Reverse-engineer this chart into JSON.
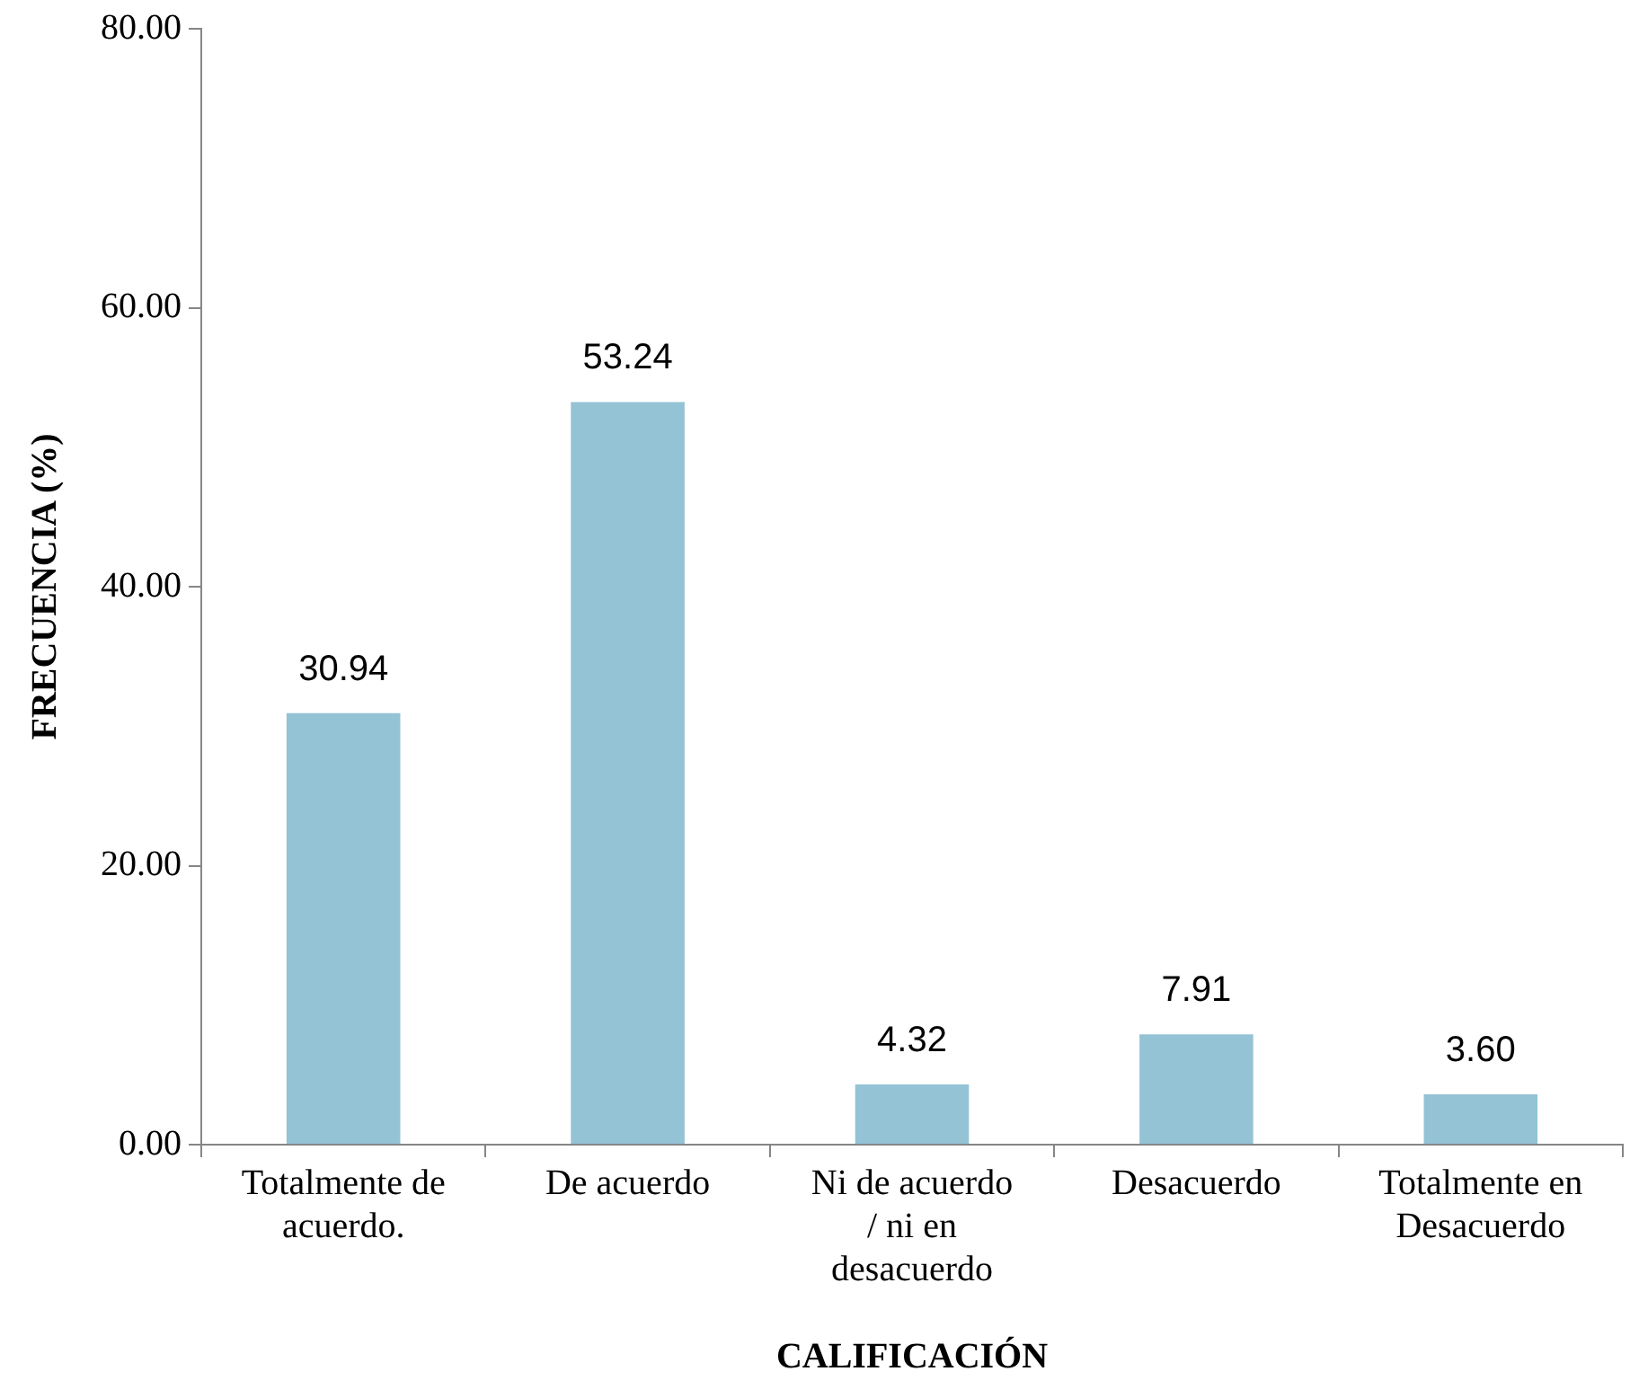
{
  "chart_data": {
    "type": "bar",
    "xlabel": "CALIFICACIÓN",
    "ylabel": "FRECUENCIA (%)",
    "categories": [
      "Totalmente de acuerdo.",
      "De acuerdo",
      "Ni de acuerdo / ni en desacuerdo",
      "Desacuerdo",
      "Totalmente en Desacuerdo"
    ],
    "values": [
      30.94,
      53.24,
      4.32,
      7.91,
      3.6
    ],
    "value_labels": [
      "30.94",
      "53.24",
      "4.32",
      "7.91",
      "3.60"
    ],
    "color": "#93c3d5",
    "ylim": [
      0,
      80
    ],
    "yticks": [
      {
        "value": 0,
        "label": "0.00"
      },
      {
        "value": 20,
        "label": "20.00"
      },
      {
        "value": 40,
        "label": "40.00"
      },
      {
        "value": 60,
        "label": "60.00"
      },
      {
        "value": 80,
        "label": "80.00"
      }
    ],
    "grid": false,
    "legend": false
  }
}
